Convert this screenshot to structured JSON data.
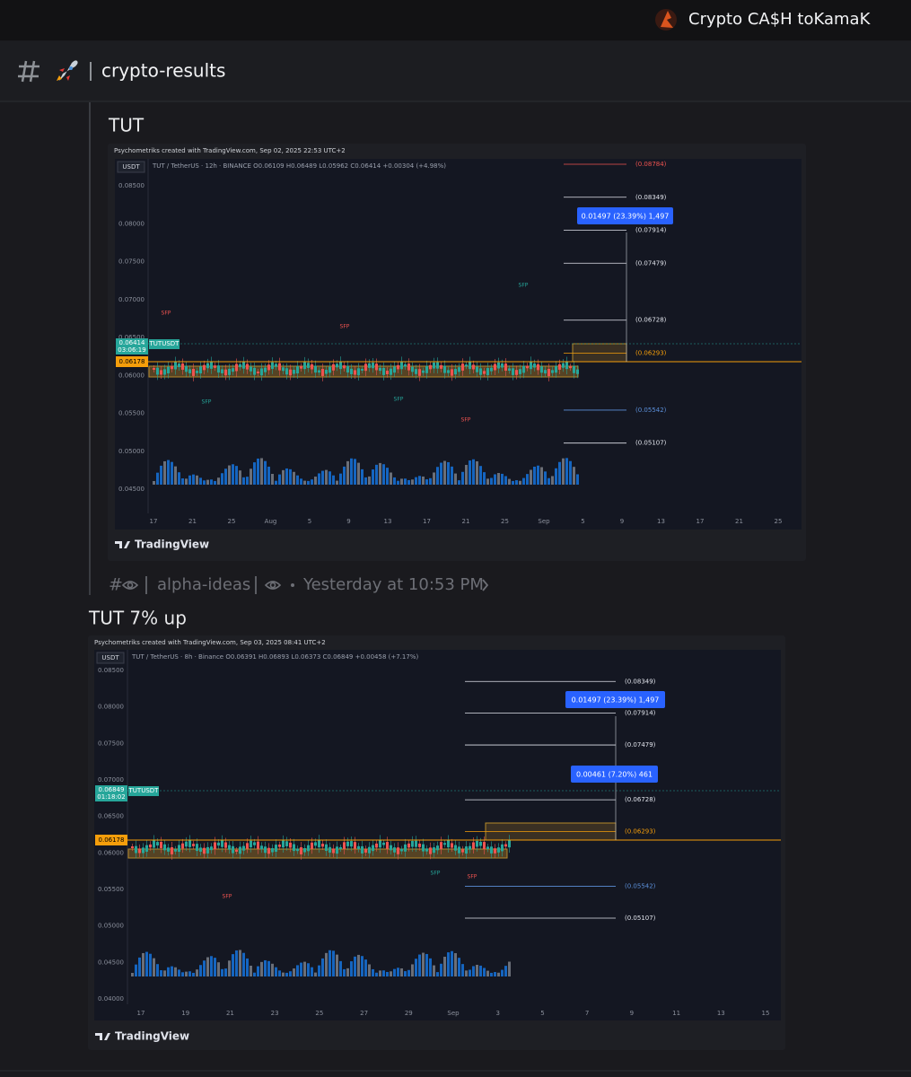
{
  "server": {
    "name": "Crypto CA$H toKamaK"
  },
  "channel": {
    "name": "crypto-results"
  },
  "messages": [
    {
      "text": "TUT",
      "image": {
        "watermark": "Psychometriks created with TradingView.com, Sep 02, 2025 22:53 UTC+2",
        "currency": "USDT",
        "symbol_header": "TUT / TetherUS · 12h · BINANCE  O0.06109 H0.06489 L0.05962 C0.06414 +0.00304 (+4.98%)",
        "yticks": [
          "0.08500",
          "0.08000",
          "0.07500",
          "0.07000",
          "0.06500",
          "0.06000",
          "0.05500",
          "0.05000",
          "0.04500"
        ],
        "xticks": [
          "17",
          "21",
          "25",
          "Aug",
          "5",
          "9",
          "13",
          "17",
          "21",
          "25",
          "Sep",
          "5",
          "9",
          "13",
          "17",
          "21",
          "25"
        ],
        "levels": [
          "(0.08784)",
          "(0.08349)",
          "(0.07914)",
          "(0.07479)",
          "(0.06728)",
          "(0.06293)",
          "(0.05542)",
          "(0.05107)"
        ],
        "measure_boxes": [
          "0.01497 (23.39%) 1,497"
        ],
        "price_label": "0.06414",
        "countdown": "03:06:19",
        "symbol_tag": "TUTUSDT",
        "line_label": "0.06178",
        "sfp_labels": [
          "SFP",
          "SFP",
          "SFP",
          "SFP",
          "SFP",
          "SFP"
        ],
        "brand": "TradingView"
      }
    },
    {
      "text": "TUT 7% up",
      "image": {
        "watermark": "Psychometriks created with TradingView.com, Sep 03, 2025 08:41 UTC+2",
        "currency": "USDT",
        "symbol_header": "TUT / TetherUS · 8h · Binance  O0.06391 H0.06893 L0.06373 C0.06849 +0.00458 (+7.17%)",
        "yticks": [
          "0.08500",
          "0.08000",
          "0.07500",
          "0.07000",
          "0.06500",
          "0.06000",
          "0.05500",
          "0.05000",
          "0.04500",
          "0.04000"
        ],
        "xticks": [
          "17",
          "19",
          "21",
          "23",
          "25",
          "27",
          "29",
          "Sep",
          "3",
          "5",
          "7",
          "9",
          "11",
          "13",
          "15"
        ],
        "levels": [
          "(0.08349)",
          "(0.07914)",
          "(0.07479)",
          "(0.06728)",
          "(0.06293)",
          "(0.05542)",
          "(0.05107)"
        ],
        "measure_boxes": [
          "0.01497 (23.39%) 1,497",
          "0.00461 (7.20%) 461"
        ],
        "price_label": "0.06849",
        "countdown": "01:18:02",
        "symbol_tag": "TUTUSDT",
        "line_label": "0.06178",
        "sfp_labels": [
          "SFP",
          "SFP",
          "SFP"
        ],
        "brand": "TradingView"
      }
    }
  ],
  "reply": {
    "channel": "alpha-ideas",
    "time": "Yesterday at 10:53 PM"
  }
}
